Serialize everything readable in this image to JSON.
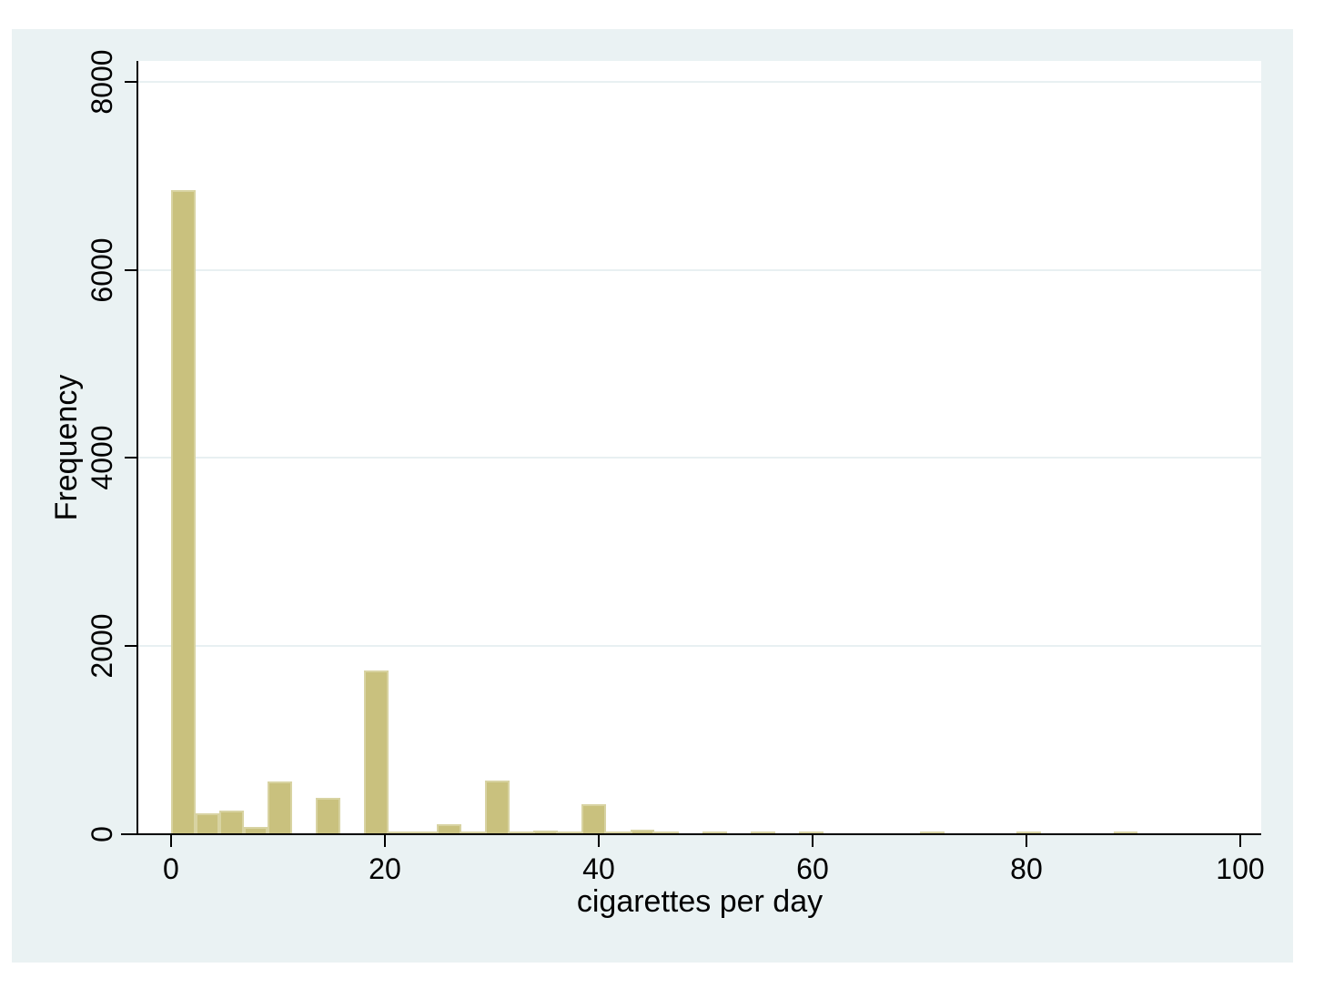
{
  "figure": {
    "surround_color": "#eaf2f3",
    "plot_background": "#ffffff",
    "gridline_color": "#e8f0f2",
    "axis_color": "#000000",
    "bar_fill": "#c9c17e",
    "bar_outline": "#d8d3a2",
    "text_color": "#000000"
  },
  "chart_data": {
    "type": "bar",
    "title": "",
    "xlabel": "cigarettes per day",
    "ylabel": "Frequency",
    "x_ticks": [
      0,
      20,
      40,
      60,
      80,
      100
    ],
    "y_ticks": [
      0,
      2000,
      4000,
      6000,
      8000
    ],
    "xlim": [
      -3.06,
      101.96
    ],
    "ylim": [
      0,
      8222
    ],
    "grid": "horizontal",
    "legend": "none",
    "bin_width": 2.26,
    "bins": [
      {
        "x0": 0.0,
        "count": 6850
      },
      {
        "x0": 2.26,
        "count": 225
      },
      {
        "x0": 4.52,
        "count": 250
      },
      {
        "x0": 6.78,
        "count": 78
      },
      {
        "x0": 9.04,
        "count": 565
      },
      {
        "x0": 13.56,
        "count": 390
      },
      {
        "x0": 18.08,
        "count": 1745
      },
      {
        "x0": 20.34,
        "count": 15
      },
      {
        "x0": 22.6,
        "count": 22
      },
      {
        "x0": 24.86,
        "count": 110
      },
      {
        "x0": 27.12,
        "count": 15
      },
      {
        "x0": 29.38,
        "count": 575
      },
      {
        "x0": 31.64,
        "count": 15
      },
      {
        "x0": 33.9,
        "count": 42
      },
      {
        "x0": 36.16,
        "count": 15
      },
      {
        "x0": 38.42,
        "count": 320
      },
      {
        "x0": 40.68,
        "count": 15
      },
      {
        "x0": 42.94,
        "count": 48
      },
      {
        "x0": 45.2,
        "count": 22
      },
      {
        "x0": 49.72,
        "count": 30
      },
      {
        "x0": 54.24,
        "count": 20
      },
      {
        "x0": 58.76,
        "count": 25
      },
      {
        "x0": 70.06,
        "count": 25
      },
      {
        "x0": 79.1,
        "count": 25
      },
      {
        "x0": 88.14,
        "count": 25
      }
    ]
  }
}
